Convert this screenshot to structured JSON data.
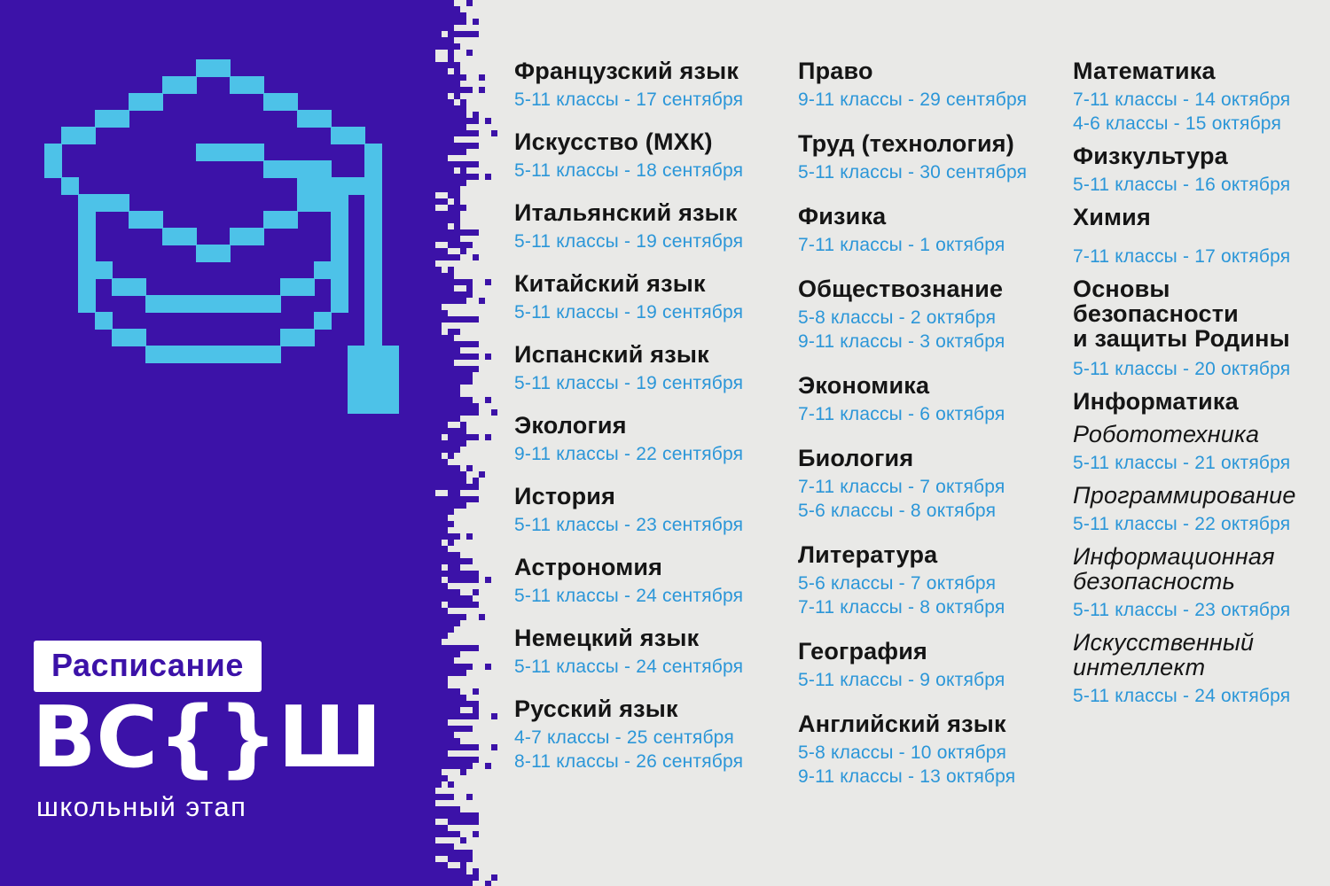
{
  "left_panel": {
    "badge_label": "Расписание",
    "logo_text": "ВС{}Ш",
    "subtitle": "школьный этап",
    "graduation_cap_grid": [
      ".........##..........",
      ".......##..##........",
      ".....##......##......",
      "...##..........##....",
      ".##..............##..",
      "#........####......#.",
      "#............####..#.",
      ".#.............#####.",
      "..###..........###.#.",
      "..#..##......##..#.#.",
      "..#....##..##....#.#.",
      "..#......##......#.#.",
      "..##............##.#.",
      "..#.##........##.#.#.",
      "..#...########...#.#.",
      "...#............#..#.",
      "....##........##...#.",
      "......########....###",
      "..................###",
      "..................###",
      "..................###"
    ]
  },
  "colors": {
    "panel_purple": "#3c12a8",
    "cap_blue": "#4dc2e8",
    "date_blue": "#2b96d8",
    "heading": "#151515",
    "background": "#e9e9e7",
    "white": "#ffffff"
  },
  "schedule": {
    "columns": [
      {
        "entries": [
          {
            "title": "Французский язык",
            "dates": [
              "5-11 классы - 17 сентября"
            ]
          },
          {
            "title": "Искусство (МХК)",
            "dates": [
              "5-11 классы - 18 сентября"
            ]
          },
          {
            "title": "Итальянский язык",
            "dates": [
              "5-11 классы - 19 сентября"
            ]
          },
          {
            "title": "Китайский язык",
            "dates": [
              "5-11 классы - 19 сентября"
            ]
          },
          {
            "title": "Испанский язык",
            "dates": [
              "5-11 классы - 19 сентября"
            ]
          },
          {
            "title": "Экология",
            "dates": [
              "9-11 классы - 22 сентября"
            ]
          },
          {
            "title": "История",
            "dates": [
              "5-11 классы - 23 сентября"
            ]
          },
          {
            "title": "Астрономия",
            "dates": [
              "5-11 классы - 24 сентября"
            ]
          },
          {
            "title": "Немецкий язык",
            "dates": [
              "5-11 классы - 24 сентября"
            ]
          },
          {
            "title": "Русский язык",
            "dates": [
              "4-7 классы - 25 сентября",
              "8-11 классы - 26 сентября"
            ]
          }
        ]
      },
      {
        "entries": [
          {
            "title": "Право",
            "dates": [
              "9-11 классы - 29 сентября"
            ]
          },
          {
            "title": "Труд (технология)",
            "dates": [
              "5-11 классы - 30 сентября"
            ]
          },
          {
            "title": "Физика",
            "dates": [
              "7-11 классы - 1 октября"
            ]
          },
          {
            "title": "Обществознание",
            "dates": [
              "5-8 классы - 2 октября",
              "9-11 классы - 3 октября"
            ]
          },
          {
            "title": "Экономика",
            "dates": [
              "7-11 классы - 6 октября"
            ]
          },
          {
            "title": "Биология",
            "dates": [
              "7-11 классы - 7 октября",
              "5-6 классы - 8 октября"
            ]
          },
          {
            "title": "Литература",
            "dates": [
              "5-6 классы - 7 октября",
              "7-11 классы - 8 октября"
            ]
          },
          {
            "title": "География",
            "dates": [
              "5-11 классы - 9 октября"
            ]
          },
          {
            "title": "Английский язык",
            "dates": [
              "5-8 классы - 10 октября",
              "9-11 классы - 13 октября"
            ]
          }
        ]
      },
      {
        "entries": [
          {
            "title": "Математика",
            "dates": [
              "7-11 классы - 14 октября",
              "4-6 классы - 15 октября"
            ]
          },
          {
            "title": "Физкультура",
            "dates": [
              "5-11 классы - 16 октября"
            ]
          },
          {
            "title": "Химия",
            "dates": [
              "7-11 классы - 17 октября"
            ]
          },
          {
            "title": "Основы\nбезопасности\nи защиты Родины",
            "dates": [
              "5-11 классы - 20 октября"
            ]
          },
          {
            "title": "Информатика",
            "dates": []
          },
          {
            "title": "Робототехника",
            "italic": true,
            "dates": [
              "5-11 классы - 21 октября"
            ]
          },
          {
            "title": "Программирование",
            "italic": true,
            "dates": [
              "5-11 классы - 22 октября"
            ]
          },
          {
            "title": "Информационная\nбезопасность",
            "italic": true,
            "dates": [
              "5-11 классы - 23 октября"
            ]
          },
          {
            "title": "Искусственный\nинтеллект",
            "italic": true,
            "dates": [
              "5-11 классы - 24 октября"
            ]
          }
        ]
      }
    ]
  }
}
